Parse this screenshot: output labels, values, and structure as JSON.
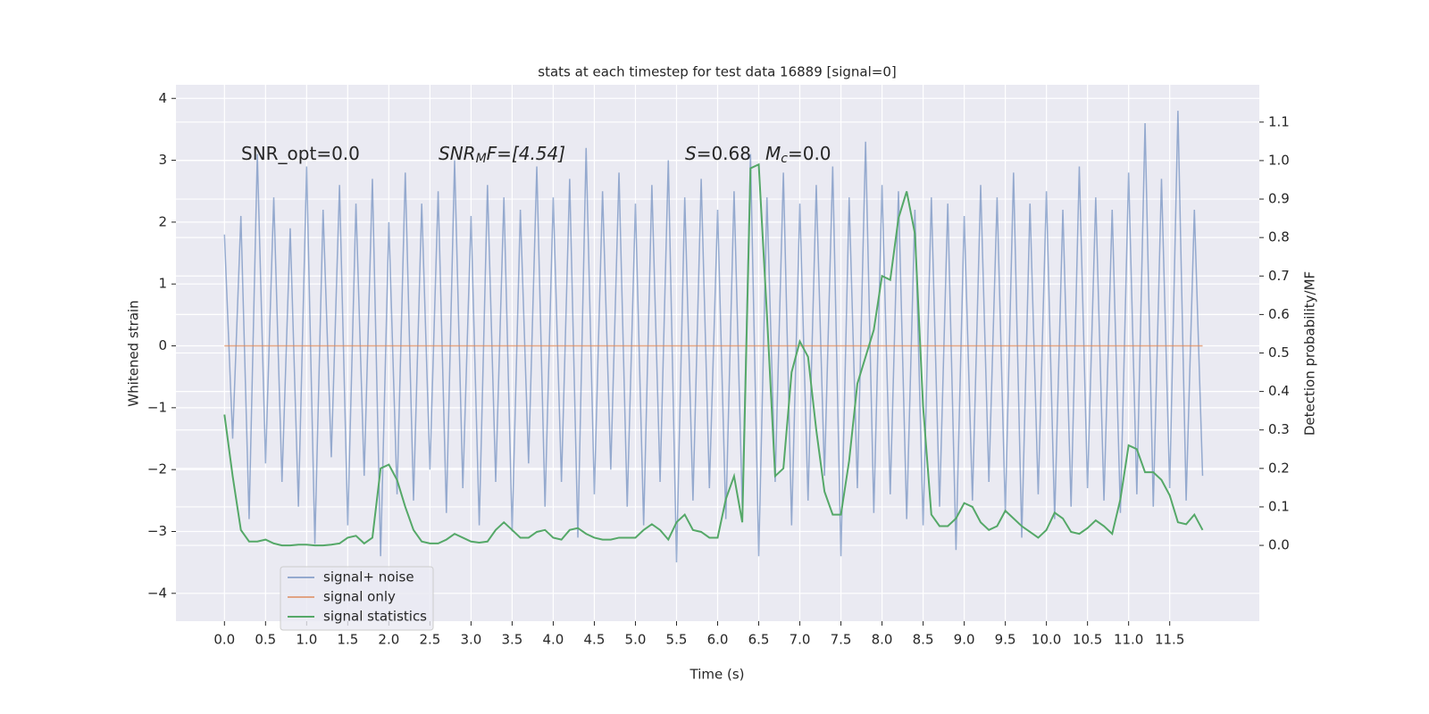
{
  "chart_data": {
    "type": "line",
    "title": "stats at each timestep for test data 16889 [signal=0]",
    "xlabel": "Time (s)",
    "ylabel": "Whitened strain",
    "y2label": "Detection probability/MF",
    "annotations": [
      {
        "parts": [
          "SNR_opt=0.0"
        ]
      },
      {
        "parts": [
          "SNR",
          "M",
          "F=[4.54]"
        ]
      },
      {
        "parts": [
          "S",
          "=0.68",
          "M",
          "c",
          "=0.0"
        ]
      }
    ],
    "xlim": [
      -0.59,
      12.59
    ],
    "ylim": [
      -4.45,
      4.22
    ],
    "y2lim": [
      -0.197,
      1.197
    ],
    "xticks": [
      {
        "value": 0,
        "label": "0.0"
      },
      0.5,
      {
        "value": 1,
        "label": "1.0"
      },
      1.5,
      {
        "value": 2,
        "label": "2.0"
      },
      2.5,
      {
        "value": 3,
        "label": "3.0"
      },
      3.5,
      {
        "value": 4,
        "label": "4.0"
      },
      4.5,
      {
        "value": 5,
        "label": "5.0"
      },
      5.5,
      {
        "value": 6,
        "label": "6.0"
      },
      6.5,
      {
        "value": 7,
        "label": "7.0"
      },
      7.5,
      {
        "value": 8,
        "label": "8.0"
      },
      8.5,
      {
        "value": 9,
        "label": "9.0"
      },
      9.5,
      {
        "value": 10,
        "label": "10.0"
      },
      10.5,
      {
        "value": 11,
        "label": "11.0"
      },
      11.5
    ],
    "yticks": [
      {
        "value": -4,
        "label": "−4"
      },
      {
        "value": -3,
        "label": "−3"
      },
      {
        "value": -2,
        "label": "−2"
      },
      {
        "value": -1,
        "label": "−1"
      },
      0,
      1,
      2,
      3,
      4
    ],
    "y2ticks": [
      {
        "value": 0,
        "label": "0.0"
      },
      0.1,
      0.2,
      0.3,
      0.4,
      0.5,
      0.6,
      0.7,
      0.8,
      0.9,
      {
        "value": 1,
        "label": "1.0"
      },
      1.1
    ],
    "grid": true,
    "legend": "lower left",
    "x": [
      0,
      0.1,
      0.2,
      0.3,
      0.4,
      0.5,
      0.6,
      0.7,
      0.8,
      0.9,
      1,
      1.1,
      1.2,
      1.3,
      1.4,
      1.5,
      1.6,
      1.7,
      1.8,
      1.9,
      2,
      2.1,
      2.2,
      2.3,
      2.4,
      2.5,
      2.6,
      2.7,
      2.8,
      2.9,
      3,
      3.1,
      3.2,
      3.3,
      3.4,
      3.5,
      3.6,
      3.7,
      3.8,
      3.9,
      4,
      4.1,
      4.2,
      4.3,
      4.4,
      4.5,
      4.6,
      4.7,
      4.8,
      4.9,
      5,
      5.1,
      5.2,
      5.3,
      5.4,
      5.5,
      5.6,
      5.7,
      5.8,
      5.9,
      6,
      6.1,
      6.2,
      6.3,
      6.4,
      6.5,
      6.6,
      6.7,
      6.8,
      6.9,
      7,
      7.1,
      7.2,
      7.3,
      7.4,
      7.5,
      7.6,
      7.7,
      7.8,
      7.9,
      8,
      8.1,
      8.2,
      8.3,
      8.4,
      8.5,
      8.6,
      8.7,
      8.8,
      8.9,
      9,
      9.1,
      9.2,
      9.3,
      9.4,
      9.5,
      9.6,
      9.7,
      9.8,
      9.9,
      10,
      10.1,
      10.2,
      10.3,
      10.4,
      10.5,
      10.6,
      10.7,
      10.8,
      10.9,
      11,
      11.1,
      11.2,
      11.3,
      11.4,
      11.5,
      11.6,
      11.7,
      11.8,
      11.9
    ],
    "series": [
      {
        "name": "signal+ noise",
        "color": "#4c72b0",
        "opacity": 0.55,
        "values": [
          1.8,
          -1.5,
          2.1,
          -2.8,
          3.1,
          -1.9,
          2.4,
          -2.2,
          1.9,
          -2.6,
          2.9,
          -3.2,
          2.2,
          -1.8,
          2.6,
          -2.9,
          2.3,
          -2.1,
          2.7,
          -3.4,
          2.0,
          -2.4,
          2.8,
          -2.5,
          2.3,
          -2.0,
          2.5,
          -2.7,
          3.0,
          -2.3,
          2.1,
          -2.9,
          2.6,
          -2.2,
          2.4,
          -3.0,
          2.2,
          -1.9,
          2.9,
          -2.6,
          2.4,
          -2.2,
          2.7,
          -3.1,
          3.2,
          -2.4,
          2.5,
          -2.0,
          2.8,
          -2.6,
          2.3,
          -2.9,
          2.6,
          -2.2,
          3.0,
          -3.5,
          2.4,
          -2.5,
          2.7,
          -2.3,
          2.2,
          -2.8,
          2.5,
          -2.6,
          3.1,
          -3.4,
          2.4,
          -2.2,
          2.8,
          -2.9,
          2.3,
          -2.5,
          2.6,
          -2.1,
          2.9,
          -3.4,
          2.4,
          -2.3,
          3.3,
          -2.7,
          2.6,
          -2.4,
          2.5,
          -2.8,
          2.2,
          -2.9,
          2.4,
          -2.6,
          2.3,
          -3.3,
          2.1,
          -2.5,
          2.6,
          -2.2,
          2.4,
          -2.7,
          2.8,
          -3.1,
          2.3,
          -2.4,
          2.5,
          -2.8,
          2.2,
          -2.6,
          2.9,
          -2.3,
          2.4,
          -2.5,
          2.2,
          -2.7,
          2.8,
          -2.4,
          3.6,
          -2.6,
          2.7,
          -2.3,
          3.8,
          -2.5,
          2.2,
          -2.1
        ]
      },
      {
        "name": "signal only",
        "color": "#dd8452",
        "opacity": 0.7,
        "values": [
          0,
          0,
          0,
          0,
          0,
          0,
          0,
          0,
          0,
          0,
          0,
          0,
          0,
          0,
          0,
          0,
          0,
          0,
          0,
          0,
          0,
          0,
          0,
          0,
          0,
          0,
          0,
          0,
          0,
          0,
          0,
          0,
          0,
          0,
          0,
          0,
          0,
          0,
          0,
          0,
          0,
          0,
          0,
          0,
          0,
          0,
          0,
          0,
          0,
          0,
          0,
          0,
          0,
          0,
          0,
          0,
          0,
          0,
          0,
          0,
          0,
          0,
          0,
          0,
          0,
          0,
          0,
          0,
          0,
          0,
          0,
          0,
          0,
          0,
          0,
          0,
          0,
          0,
          0,
          0,
          0,
          0,
          0,
          0,
          0,
          0,
          0,
          0,
          0,
          0,
          0,
          0,
          0,
          0,
          0,
          0,
          0,
          0,
          0,
          0,
          0,
          0,
          0,
          0,
          0,
          0,
          0,
          0,
          0,
          0,
          0,
          0,
          0,
          0,
          0,
          0,
          0,
          0,
          0,
          0
        ]
      },
      {
        "name": "signal statistics",
        "color": "#55a868",
        "opacity": 1,
        "axis": "y2",
        "values": [
          0.34,
          0.18,
          0.04,
          0.01,
          0.01,
          0.015,
          0.005,
          0,
          0,
          0.002,
          0.002,
          0,
          0,
          0.002,
          0.005,
          0.02,
          0.025,
          0.005,
          0.02,
          0.2,
          0.21,
          0.17,
          0.1,
          0.04,
          0.01,
          0.005,
          0.005,
          0.015,
          0.03,
          0.02,
          0.01,
          0.007,
          0.01,
          0.04,
          0.06,
          0.04,
          0.02,
          0.02,
          0.035,
          0.04,
          0.02,
          0.015,
          0.04,
          0.045,
          0.03,
          0.02,
          0.015,
          0.015,
          0.02,
          0.02,
          0.02,
          0.04,
          0.055,
          0.04,
          0.015,
          0.06,
          0.08,
          0.04,
          0.035,
          0.02,
          0.02,
          0.12,
          0.18,
          0.06,
          0.98,
          0.99,
          0.6,
          0.18,
          0.2,
          0.45,
          0.53,
          0.49,
          0.3,
          0.14,
          0.08,
          0.08,
          0.22,
          0.42,
          0.49,
          0.56,
          0.7,
          0.69,
          0.85,
          0.92,
          0.81,
          0.36,
          0.08,
          0.05,
          0.05,
          0.07,
          0.11,
          0.1,
          0.06,
          0.04,
          0.05,
          0.09,
          0.07,
          0.05,
          0.035,
          0.02,
          0.04,
          0.085,
          0.07,
          0.035,
          0.03,
          0.045,
          0.065,
          0.05,
          0.03,
          0.12,
          0.26,
          0.25,
          0.19,
          0.19,
          0.17,
          0.13,
          0.06,
          0.055,
          0.08,
          0.04
        ]
      }
    ]
  }
}
